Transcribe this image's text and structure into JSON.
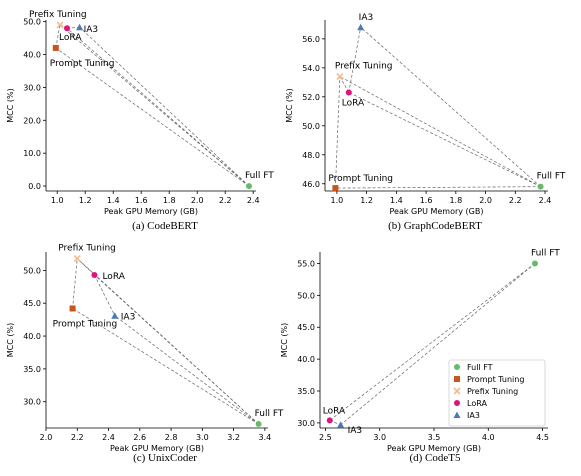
{
  "legend": [
    {
      "label": "Full FT",
      "color": "#66bb6a",
      "marker": "circle"
    },
    {
      "label": "Prompt Tuning",
      "color": "#c8551b",
      "marker": "square"
    },
    {
      "label": "Prefix Tuning",
      "color": "#f5b98c",
      "marker": "x"
    },
    {
      "label": "LoRA",
      "color": "#e0137a",
      "marker": "circle"
    },
    {
      "label": "IA3",
      "color": "#4a78b8",
      "marker": "triangle"
    }
  ],
  "chart_data": [
    {
      "type": "scatter",
      "caption": "(a) CodeBERT",
      "xlabel": "Peak GPU Memory (GB)",
      "ylabel": "MCC (%)",
      "xlim": [
        0.92,
        2.42
      ],
      "ylim": [
        -1.5,
        50.5
      ],
      "xticks": [
        "1.0",
        "1.2",
        "1.4",
        "1.6",
        "1.8",
        "2.0",
        "2.2",
        "2.4"
      ],
      "xtick_values": [
        1.0,
        1.2,
        1.4,
        1.6,
        1.8,
        2.0,
        2.2,
        2.4
      ],
      "yticks": [
        "0.0",
        "10.0",
        "20.0",
        "30.0",
        "40.0",
        "50.0"
      ],
      "ytick_values": [
        0,
        10,
        20,
        30,
        40,
        50
      ],
      "points": [
        {
          "method": "Full FT",
          "label": "Full FT",
          "x": 2.37,
          "y": 0.0
        },
        {
          "method": "Prompt Tuning",
          "label": "Prompt Tuning",
          "x": 0.99,
          "y": 42.0
        },
        {
          "method": "Prefix Tuning",
          "label": "Prefix Tuning",
          "x": 1.02,
          "y": 49.0
        },
        {
          "method": "LoRA",
          "label": "LoRA",
          "x": 1.07,
          "y": 48.0
        },
        {
          "method": "IA3",
          "label": "IA3",
          "x": 1.16,
          "y": 48.3
        }
      ]
    },
    {
      "type": "scatter",
      "caption": "(b) GraphCodeBERT",
      "xlabel": "Peak GPU Memory (GB)",
      "ylabel": "MCC (%)",
      "xlim": [
        0.92,
        2.42
      ],
      "ylim": [
        45.5,
        57.3
      ],
      "xticks": [
        "1.0",
        "1.2",
        "1.4",
        "1.6",
        "1.8",
        "2.0",
        "2.2",
        "2.4"
      ],
      "xtick_values": [
        1.0,
        1.2,
        1.4,
        1.6,
        1.8,
        2.0,
        2.2,
        2.4
      ],
      "yticks": [
        "46.0",
        "48.0",
        "50.0",
        "52.0",
        "54.0",
        "56.0"
      ],
      "ytick_values": [
        46,
        48,
        50,
        52,
        54,
        56
      ],
      "points": [
        {
          "method": "Full FT",
          "label": "Full FT",
          "x": 2.37,
          "y": 45.8
        },
        {
          "method": "Prompt Tuning",
          "label": "Prompt Tuning",
          "x": 0.99,
          "y": 45.7
        },
        {
          "method": "Prefix Tuning",
          "label": "Prefix Tuning",
          "x": 1.02,
          "y": 53.4
        },
        {
          "method": "LoRA",
          "label": "LoRA",
          "x": 1.08,
          "y": 52.3
        },
        {
          "method": "IA3",
          "label": "IA3",
          "x": 1.16,
          "y": 56.8
        }
      ]
    },
    {
      "type": "scatter",
      "caption": "(c) UnixCoder",
      "xlabel": "Peak GPU Memory (GB)",
      "ylabel": "MCC (%)",
      "xlim": [
        2.0,
        3.42
      ],
      "ylim": [
        26.0,
        52.8
      ],
      "xticks": [
        "2.0",
        "2.2",
        "2.4",
        "2.6",
        "2.8",
        "3.0",
        "3.2",
        "3.4"
      ],
      "xtick_values": [
        2.0,
        2.2,
        2.4,
        2.6,
        2.8,
        3.0,
        3.2,
        3.4
      ],
      "yticks": [
        "30.0",
        "35.0",
        "40.0",
        "45.0",
        "50.0"
      ],
      "ytick_values": [
        30,
        35,
        40,
        45,
        50
      ],
      "points": [
        {
          "method": "Full FT",
          "label": "Full FT",
          "x": 3.36,
          "y": 26.6
        },
        {
          "method": "Prompt Tuning",
          "label": "Prompt Tuning",
          "x": 2.17,
          "y": 44.2
        },
        {
          "method": "Prefix Tuning",
          "label": "Prefix Tuning",
          "x": 2.2,
          "y": 51.8
        },
        {
          "method": "LoRA",
          "label": "LoRA",
          "x": 2.31,
          "y": 49.3
        },
        {
          "method": "IA3",
          "label": "IA3",
          "x": 2.44,
          "y": 43.1
        }
      ]
    },
    {
      "type": "scatter",
      "caption": "(d) CodeT5",
      "xlabel": "Peak GPU Memory (GB)",
      "ylabel": "MCC (%)",
      "xlim": [
        2.45,
        4.55
      ],
      "ylim": [
        29.2,
        56.8
      ],
      "xticks": [
        "2.5",
        "3.0",
        "3.5",
        "4.0",
        "4.5"
      ],
      "xtick_values": [
        2.5,
        3.0,
        3.5,
        4.0,
        4.5
      ],
      "yticks": [
        "30.0",
        "35.0",
        "40.0",
        "45.0",
        "50.0",
        "55.0"
      ],
      "ytick_values": [
        30,
        35,
        40,
        45,
        50,
        55
      ],
      "legend_position": "lower-right",
      "points": [
        {
          "method": "Full FT",
          "label": "Full FT",
          "x": 4.43,
          "y": 55.0
        },
        {
          "method": "LoRA",
          "label": "LoRA",
          "x": 2.54,
          "y": 30.4
        },
        {
          "method": "IA3",
          "label": "IA3",
          "x": 2.64,
          "y": 29.7
        }
      ]
    }
  ]
}
